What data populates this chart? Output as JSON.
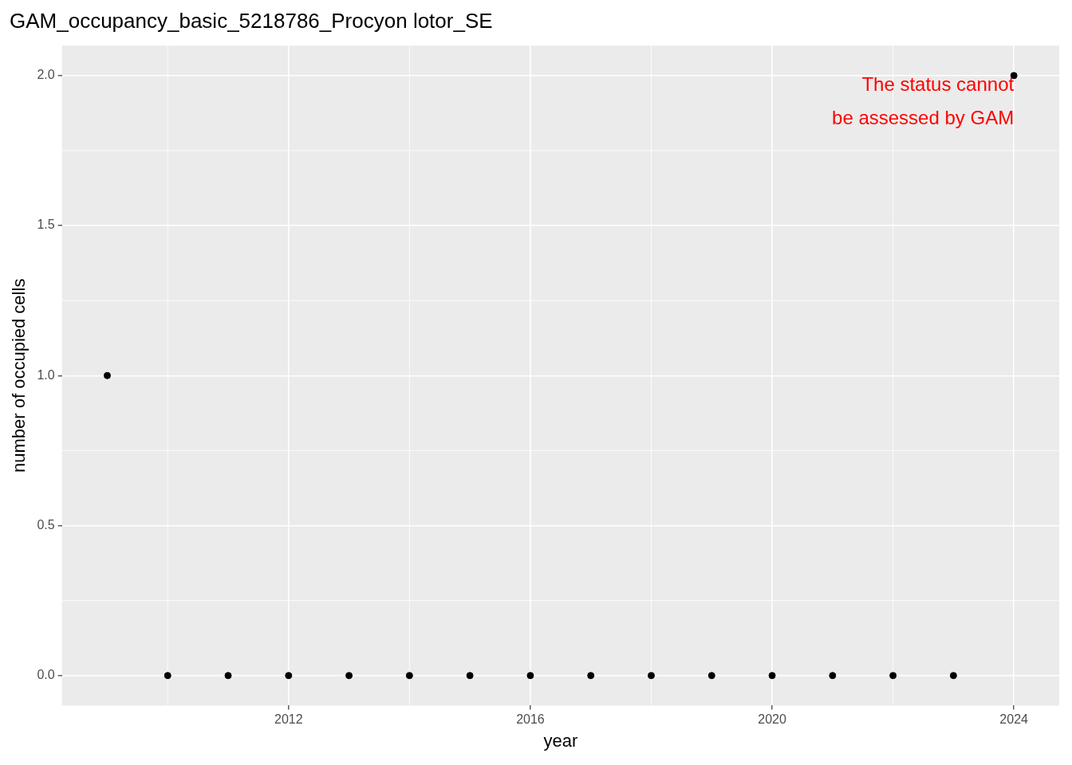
{
  "chart_data": {
    "type": "scatter",
    "title": "GAM_occupancy_basic_5218786_Procyon lotor_SE",
    "xlabel": "year",
    "ylabel": "number of occupied cells",
    "x": [
      2009,
      2010,
      2011,
      2012,
      2013,
      2014,
      2015,
      2016,
      2017,
      2018,
      2019,
      2020,
      2021,
      2022,
      2023,
      2024
    ],
    "series": [
      {
        "color": "#000000",
        "values": [
          1,
          0,
          0,
          0,
          0,
          0,
          0,
          0,
          0,
          0,
          0,
          0,
          0,
          0,
          0,
          2
        ]
      }
    ],
    "xlim": [
      2008.25,
      2024.75
    ],
    "xticks": [
      2012,
      2016,
      2020,
      2024
    ],
    "ylim": [
      -0.1,
      2.1
    ],
    "yticks": [
      {
        "value": 0,
        "label": "0.0"
      },
      {
        "value": 0.5,
        "label": "0.5"
      },
      {
        "value": 1,
        "label": "1.0"
      },
      {
        "value": 1.5,
        "label": "1.5"
      },
      {
        "value": 2,
        "label": "2.0"
      }
    ],
    "annotations": [
      {
        "text": "The status cannot\nbe assessed by GAM",
        "x": 2024,
        "y": 2
      }
    ],
    "grid": true,
    "legend": false,
    "marker": "circle"
  }
}
